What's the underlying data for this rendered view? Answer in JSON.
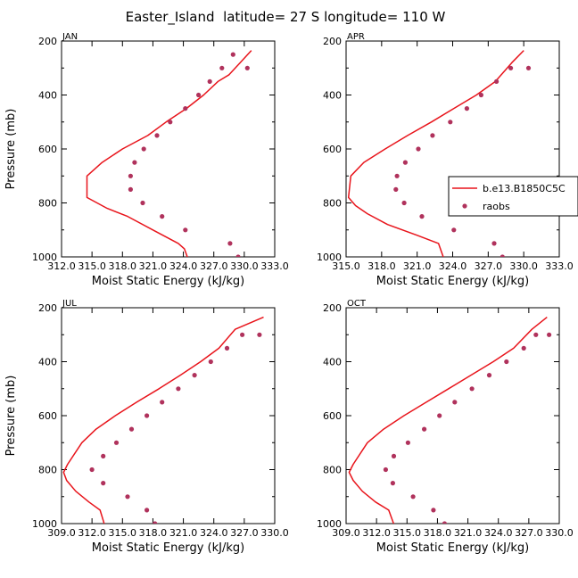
{
  "figure": {
    "title": "Easter_Island  latitude= 27 S longitude= 110 W"
  },
  "colors": {
    "model_line": "#e8141b",
    "obs_marker": "#b0325c",
    "axes": "#000000"
  },
  "legend": {
    "placement": "right of APR panel",
    "entries": [
      {
        "label": "b.e13.B1850C5C",
        "style": "line"
      },
      {
        "label": "raobs",
        "style": "marker"
      }
    ]
  },
  "chart_data": [
    {
      "type": "line",
      "panel": "JAN",
      "xlabel": "Moist Static Energy (kJ/kg)",
      "ylabel": "Pressure (mb)",
      "xlim": [
        312.0,
        333.0
      ],
      "ylim": [
        1000,
        200
      ],
      "xticks": [
        "312.0",
        "315.0",
        "318.0",
        "321.0",
        "324.0",
        "327.0",
        "330.0",
        "333.0"
      ],
      "yticks": [
        "200",
        "400",
        "600",
        "800",
        "1000"
      ],
      "series": [
        {
          "name": "b.e13.B1850C5C",
          "kind": "line",
          "x": [
            324.5,
            324.1,
            323.5,
            321.0,
            318.5,
            316.5,
            314.5,
            314.5,
            316.0,
            318.0,
            320.5,
            322.3,
            324.3,
            326.0,
            327.4,
            328.5,
            329.6,
            330.7
          ],
          "y": [
            1012,
            970,
            950,
            900,
            850,
            820,
            780,
            700,
            650,
            600,
            550,
            500,
            450,
            400,
            350,
            325,
            280,
            235
          ]
        },
        {
          "name": "raobs",
          "kind": "scatter",
          "x": [
            329.4,
            328.6,
            324.2,
            321.9,
            320.0,
            318.8,
            318.8,
            319.2,
            320.1,
            321.4,
            322.7,
            324.2,
            325.5,
            326.6,
            327.8,
            328.9,
            330.3
          ],
          "y": [
            1000,
            950,
            900,
            850,
            800,
            750,
            700,
            650,
            600,
            550,
            500,
            450,
            400,
            350,
            300,
            250,
            300
          ]
        }
      ]
    },
    {
      "type": "line",
      "panel": "APR",
      "xlabel": "Moist Static Energy (kJ/kg)",
      "ylabel": "",
      "xlim": [
        315.0,
        333.0
      ],
      "ylim": [
        1000,
        200
      ],
      "xticks": [
        "315.0",
        "318.0",
        "321.0",
        "324.0",
        "327.0",
        "330.0",
        "333.0"
      ],
      "yticks": [
        "200",
        "400",
        "600",
        "800",
        "1000"
      ],
      "series": [
        {
          "name": "b.e13.B1850C5C",
          "kind": "line",
          "x": [
            323.3,
            322.8,
            321.0,
            318.5,
            316.8,
            315.8,
            315.2,
            315.4,
            316.5,
            318.3,
            320.2,
            322.2,
            324.1,
            326.0,
            327.6,
            329.0,
            330.0
          ],
          "y": [
            1012,
            950,
            920,
            880,
            840,
            810,
            780,
            700,
            650,
            600,
            550,
            500,
            450,
            400,
            350,
            280,
            235
          ]
        },
        {
          "name": "raobs",
          "kind": "scatter",
          "x": [
            328.2,
            327.5,
            324.1,
            321.4,
            319.9,
            319.2,
            319.3,
            320.0,
            321.1,
            322.3,
            323.8,
            325.2,
            326.4,
            327.7,
            328.9,
            330.4
          ],
          "y": [
            1000,
            950,
            900,
            850,
            800,
            750,
            700,
            650,
            600,
            550,
            500,
            450,
            400,
            350,
            300,
            300
          ]
        }
      ]
    },
    {
      "type": "line",
      "panel": "JUL",
      "xlabel": "Moist Static Energy (kJ/kg)",
      "ylabel": "Pressure (mb)",
      "xlim": [
        309.0,
        330.0
      ],
      "ylim": [
        1000,
        200
      ],
      "xticks": [
        "309.0",
        "312.0",
        "315.0",
        "318.0",
        "321.0",
        "324.0",
        "327.0",
        "330.0"
      ],
      "yticks": [
        "200",
        "400",
        "600",
        "800",
        "1000"
      ],
      "series": [
        {
          "name": "b.e13.B1850C5C",
          "kind": "line",
          "x": [
            313.3,
            312.8,
            311.7,
            310.4,
            309.5,
            309.2,
            309.6,
            311.0,
            312.4,
            314.3,
            316.4,
            318.6,
            320.7,
            322.7,
            324.5,
            326.1,
            328.9
          ],
          "y": [
            1012,
            950,
            920,
            880,
            840,
            810,
            780,
            700,
            650,
            600,
            550,
            500,
            450,
            400,
            350,
            280,
            235
          ]
        },
        {
          "name": "raobs",
          "kind": "scatter",
          "x": [
            318.2,
            317.4,
            315.5,
            313.1,
            312.0,
            313.1,
            314.4,
            315.9,
            317.4,
            318.9,
            320.5,
            322.1,
            323.7,
            325.3,
            326.8,
            328.5
          ],
          "y": [
            1000,
            950,
            900,
            850,
            800,
            750,
            700,
            650,
            600,
            550,
            500,
            450,
            400,
            350,
            300,
            300
          ]
        }
      ]
    },
    {
      "type": "line",
      "panel": "OCT",
      "xlabel": "Moist Static Energy (kJ/kg)",
      "ylabel": "",
      "xlim": [
        309.0,
        330.0
      ],
      "ylim": [
        1000,
        200
      ],
      "xticks": [
        "309.0",
        "312.0",
        "315.0",
        "318.0",
        "321.0",
        "324.0",
        "327.0",
        "330.0"
      ],
      "yticks": [
        "200",
        "400",
        "600",
        "800",
        "1000"
      ],
      "series": [
        {
          "name": "b.e13.B1850C5C",
          "kind": "line",
          "x": [
            313.8,
            313.2,
            311.9,
            310.6,
            309.7,
            309.3,
            309.7,
            311.1,
            312.7,
            314.7,
            316.9,
            319.1,
            321.3,
            323.5,
            325.5,
            327.3,
            328.8
          ],
          "y": [
            1012,
            950,
            920,
            880,
            840,
            810,
            780,
            700,
            650,
            600,
            550,
            500,
            450,
            400,
            350,
            280,
            235
          ]
        },
        {
          "name": "raobs",
          "kind": "scatter",
          "x": [
            318.7,
            317.6,
            315.6,
            313.6,
            312.9,
            313.7,
            315.1,
            316.7,
            318.2,
            319.7,
            321.4,
            323.1,
            324.8,
            326.5,
            327.7,
            329.0
          ],
          "y": [
            1000,
            950,
            900,
            850,
            800,
            750,
            700,
            650,
            600,
            550,
            500,
            450,
            400,
            350,
            300,
            300
          ]
        }
      ]
    }
  ]
}
